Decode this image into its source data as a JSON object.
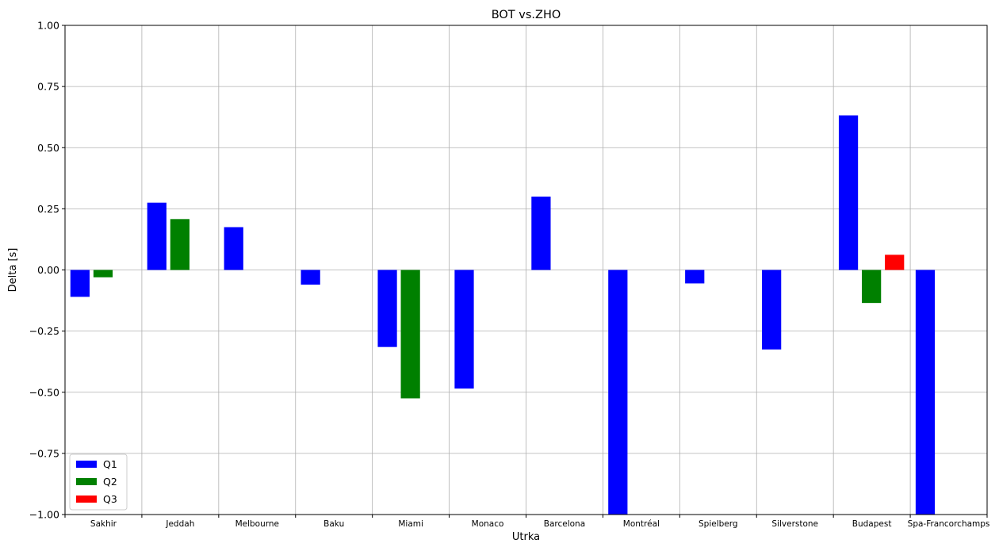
{
  "chart_data": {
    "type": "bar",
    "title": "BOT vs.ZHO",
    "xlabel": "Utrka",
    "ylabel": "Delta [s]",
    "ylim": [
      -1.0,
      1.0
    ],
    "yticks": [
      "−1.00",
      "−0.75",
      "−0.50",
      "−0.25",
      "0.00",
      "0.25",
      "0.50",
      "0.75",
      "1.00"
    ],
    "ytick_values": [
      -1.0,
      -0.75,
      -0.5,
      -0.25,
      0.0,
      0.25,
      0.5,
      0.75,
      1.0
    ],
    "grid": true,
    "legend_position": "lower-left",
    "categories": [
      "Sakhir",
      "Jeddah",
      "Melbourne",
      "Baku",
      "Miami",
      "Monaco",
      "Barcelona",
      "Montréal",
      "Spielberg",
      "Silverstone",
      "Budapest",
      "Spa-Francorchamps"
    ],
    "series": [
      {
        "name": "Q1",
        "color": "#0000ff",
        "values": [
          -0.11,
          0.275,
          0.175,
          -0.06,
          -0.315,
          -0.485,
          0.3,
          -1.0,
          -0.055,
          -0.325,
          0.632,
          -1.0
        ]
      },
      {
        "name": "Q2",
        "color": "#008000",
        "values": [
          -0.03,
          0.208,
          null,
          null,
          -0.525,
          null,
          null,
          null,
          null,
          null,
          -0.135,
          null
        ]
      },
      {
        "name": "Q3",
        "color": "#ff0000",
        "values": [
          null,
          null,
          null,
          null,
          null,
          null,
          null,
          null,
          null,
          null,
          0.062,
          null
        ]
      }
    ]
  }
}
